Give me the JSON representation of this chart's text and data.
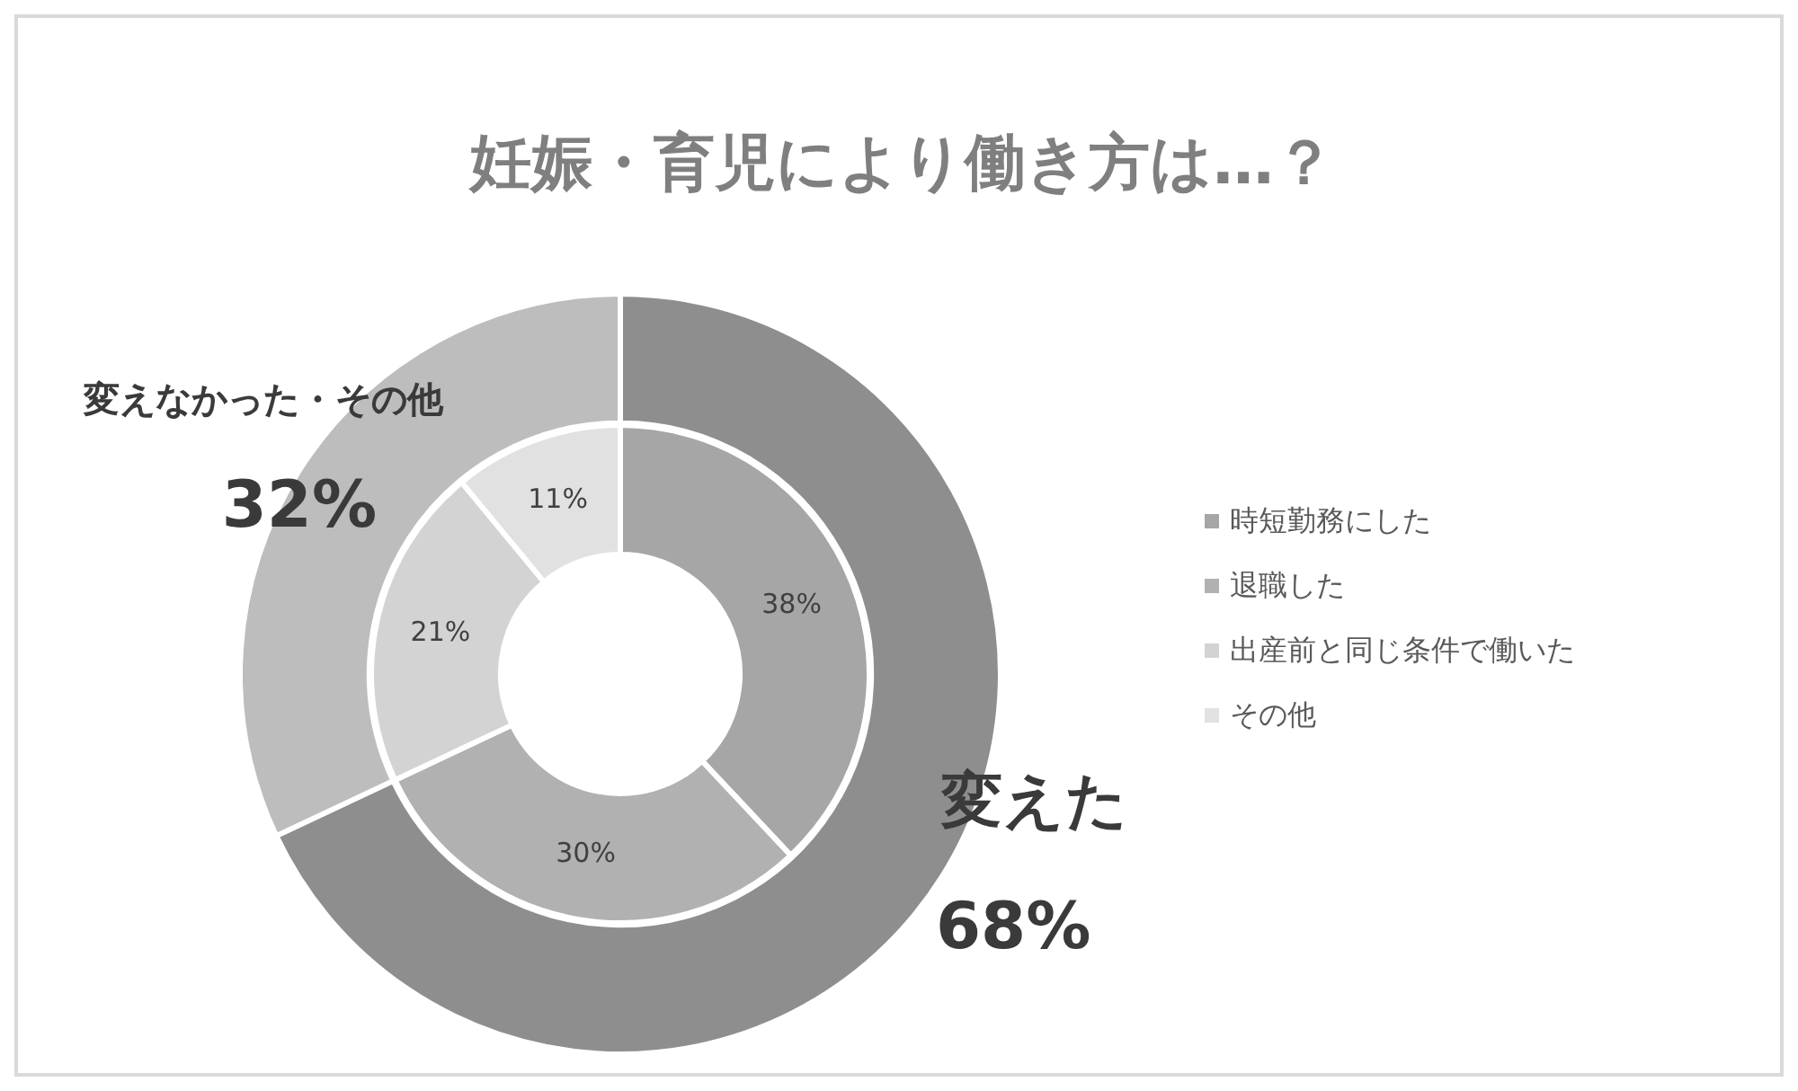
{
  "chart_data": [
    {
      "type": "donut",
      "title": "妊娠・育児により働き方は…？",
      "categories": [
        "変えた",
        "変えなかった・その他"
      ],
      "values": [
        68,
        32
      ],
      "colors": [
        "#8e8e8e",
        "#bdbdbd"
      ],
      "value_labels": [
        "68%",
        "32%"
      ]
    },
    {
      "type": "donut",
      "legend": "right",
      "categories": [
        "時短勤務にした",
        "退職した",
        "出産前と同じ条件で働いた",
        "その他"
      ],
      "values": [
        38,
        30,
        21,
        11
      ],
      "colors": [
        "#a6a6a6",
        "#b1b1b1",
        "#d3d3d3",
        "#e1e1e1"
      ],
      "value_labels": [
        "38%",
        "30%",
        "21%",
        "11%"
      ]
    }
  ]
}
